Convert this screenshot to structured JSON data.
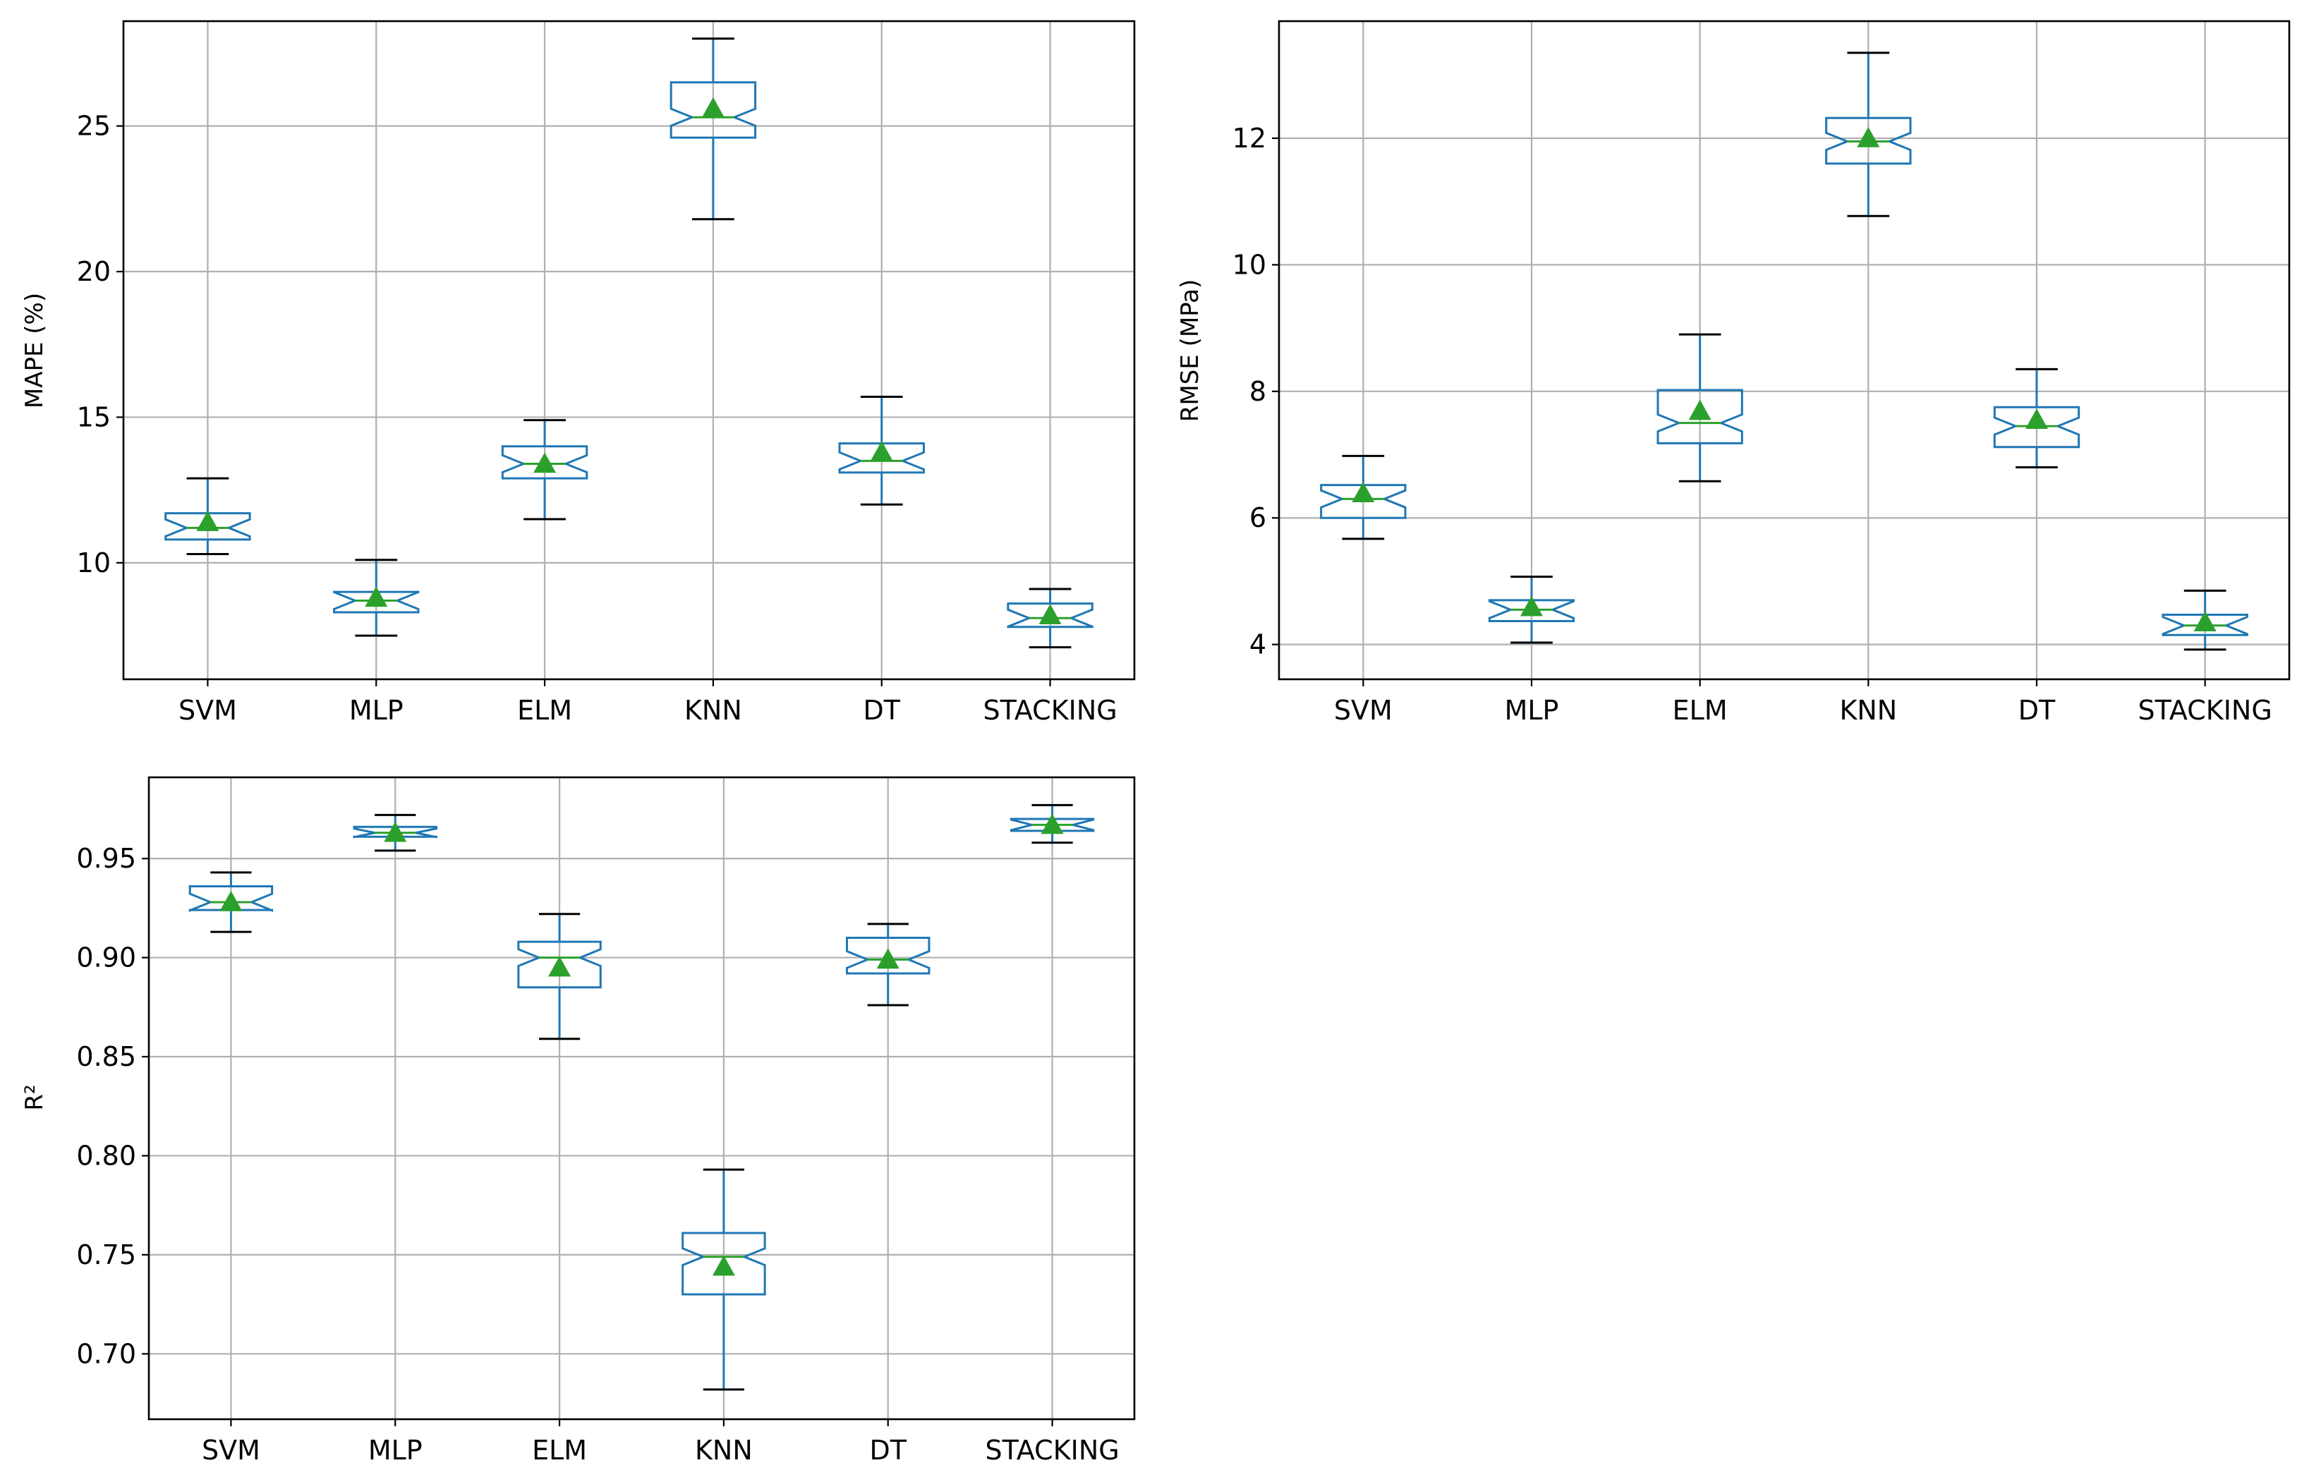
{
  "chart_data": [
    {
      "type": "box",
      "ylabel": "MAPE (%)",
      "categories": [
        "SVM",
        "MLP",
        "ELM",
        "KNN",
        "DT",
        "STACKING"
      ],
      "ylim": [
        6.0,
        28.6
      ],
      "yticks": [
        10,
        15,
        20,
        25
      ],
      "grid": true,
      "series": [
        {
          "whisker_low": 10.3,
          "q1": 10.8,
          "median": 11.2,
          "q3": 11.7,
          "whisker_high": 12.9,
          "mean": 11.4
        },
        {
          "whisker_low": 7.5,
          "q1": 8.3,
          "median": 8.7,
          "q3": 9.0,
          "whisker_high": 10.1,
          "mean": 8.8
        },
        {
          "whisker_low": 11.5,
          "q1": 12.9,
          "median": 13.4,
          "q3": 14.0,
          "whisker_high": 14.9,
          "mean": 13.4
        },
        {
          "whisker_low": 21.8,
          "q1": 24.6,
          "median": 25.3,
          "q3": 26.5,
          "whisker_high": 28.0,
          "mean": 25.6
        },
        {
          "whisker_low": 12.0,
          "q1": 13.1,
          "median": 13.5,
          "q3": 14.1,
          "whisker_high": 15.7,
          "mean": 13.8
        },
        {
          "whisker_low": 7.1,
          "q1": 7.8,
          "median": 8.1,
          "q3": 8.6,
          "whisker_high": 9.1,
          "mean": 8.2
        }
      ]
    },
    {
      "type": "box",
      "ylabel": "RMSE (MPa)",
      "categories": [
        "SVM",
        "MLP",
        "ELM",
        "KNN",
        "DT",
        "STACKING"
      ],
      "ylim": [
        3.45,
        13.85
      ],
      "yticks": [
        4,
        6,
        8,
        10,
        12
      ],
      "grid": true,
      "series": [
        {
          "whisker_low": 5.67,
          "q1": 6.0,
          "median": 6.3,
          "q3": 6.52,
          "whisker_high": 6.98,
          "mean": 6.39
        },
        {
          "whisker_low": 4.03,
          "q1": 4.37,
          "median": 4.55,
          "q3": 4.7,
          "whisker_high": 5.07,
          "mean": 4.59
        },
        {
          "whisker_low": 6.58,
          "q1": 7.18,
          "median": 7.5,
          "q3": 8.02,
          "whisker_high": 8.9,
          "mean": 7.69
        },
        {
          "whisker_low": 10.77,
          "q1": 11.6,
          "median": 11.95,
          "q3": 12.32,
          "whisker_high": 13.35,
          "mean": 12.0
        },
        {
          "whisker_low": 6.8,
          "q1": 7.12,
          "median": 7.45,
          "q3": 7.75,
          "whisker_high": 8.35,
          "mean": 7.55
        },
        {
          "whisker_low": 3.92,
          "q1": 4.15,
          "median": 4.3,
          "q3": 4.47,
          "whisker_high": 4.85,
          "mean": 4.35
        }
      ]
    },
    {
      "type": "box",
      "ylabel": "R²",
      "categories": [
        "SVM",
        "MLP",
        "ELM",
        "KNN",
        "DT",
        "STACKING"
      ],
      "ylim": [
        0.667,
        0.991
      ],
      "yticks": [
        0.7,
        0.75,
        0.8,
        0.85,
        0.9,
        0.95
      ],
      "yticklabels": [
        "0.70",
        "0.75",
        "0.80",
        "0.85",
        "0.90",
        "0.95"
      ],
      "grid": true,
      "series": [
        {
          "whisker_low": 0.913,
          "q1": 0.924,
          "median": 0.928,
          "q3": 0.936,
          "whisker_high": 0.943,
          "mean": 0.928
        },
        {
          "whisker_low": 0.954,
          "q1": 0.961,
          "median": 0.963,
          "q3": 0.966,
          "whisker_high": 0.972,
          "mean": 0.963
        },
        {
          "whisker_low": 0.859,
          "q1": 0.885,
          "median": 0.9,
          "q3": 0.908,
          "whisker_high": 0.922,
          "mean": 0.895
        },
        {
          "whisker_low": 0.682,
          "q1": 0.73,
          "median": 0.749,
          "q3": 0.761,
          "whisker_high": 0.793,
          "mean": 0.744
        },
        {
          "whisker_low": 0.876,
          "q1": 0.892,
          "median": 0.899,
          "q3": 0.91,
          "whisker_high": 0.917,
          "mean": 0.899
        },
        {
          "whisker_low": 0.958,
          "q1": 0.964,
          "median": 0.967,
          "q3": 0.97,
          "whisker_high": 0.977,
          "mean": 0.967
        }
      ]
    }
  ],
  "colors": {
    "box": "#1f77b4",
    "median": "#2ca02c",
    "mean_marker": "#2ca02c",
    "whisker_cap": "#000000",
    "grid": "#b0b0b0"
  }
}
